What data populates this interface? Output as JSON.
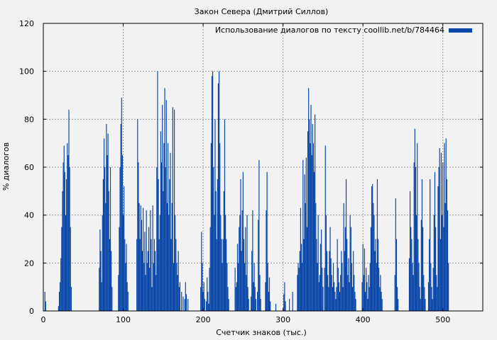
{
  "chart_data": {
    "type": "bar",
    "title": "Закон Севера (Дмитрий Силлов)",
    "xlabel": "Счетчик знаков (тыс.)",
    "ylabel": "% диалогов",
    "xlim": [
      0,
      550
    ],
    "ylim": [
      0,
      120
    ],
    "xticks": [
      "0",
      "100",
      "200",
      "300",
      "400",
      "500"
    ],
    "yticks": [
      "0",
      "20",
      "40",
      "60",
      "80",
      "100",
      "120"
    ],
    "grid": true,
    "legend_position": "top-right",
    "series": [
      {
        "name": "Использование диалогов по тексту coollib.net/b/784464",
        "color": "#0a47a9",
        "points": [
          [
            2,
            8
          ],
          [
            3,
            4
          ],
          [
            19,
            2
          ],
          [
            20,
            8
          ],
          [
            21,
            12
          ],
          [
            22,
            22
          ],
          [
            23,
            35
          ],
          [
            24,
            50
          ],
          [
            25,
            62
          ],
          [
            26,
            69
          ],
          [
            27,
            58
          ],
          [
            28,
            40
          ],
          [
            29,
            55
          ],
          [
            30,
            70
          ],
          [
            31,
            65
          ],
          [
            32,
            84
          ],
          [
            33,
            60
          ],
          [
            34,
            35
          ],
          [
            35,
            10
          ],
          [
            70,
            18
          ],
          [
            71,
            34
          ],
          [
            72,
            25
          ],
          [
            73,
            12
          ],
          [
            74,
            40
          ],
          [
            75,
            55
          ],
          [
            76,
            72
          ],
          [
            77,
            60
          ],
          [
            78,
            45
          ],
          [
            79,
            78
          ],
          [
            80,
            65
          ],
          [
            81,
            74
          ],
          [
            82,
            50
          ],
          [
            83,
            30
          ],
          [
            84,
            60
          ],
          [
            85,
            25
          ],
          [
            86,
            10
          ],
          [
            94,
            15
          ],
          [
            95,
            35
          ],
          [
            96,
            60
          ],
          [
            97,
            78
          ],
          [
            98,
            89
          ],
          [
            99,
            65
          ],
          [
            100,
            40
          ],
          [
            101,
            52
          ],
          [
            102,
            30
          ],
          [
            103,
            20
          ],
          [
            104,
            28
          ],
          [
            105,
            12
          ],
          [
            106,
            8
          ],
          [
            117,
            30
          ],
          [
            118,
            80
          ],
          [
            119,
            62
          ],
          [
            120,
            45
          ],
          [
            121,
            30
          ],
          [
            122,
            44
          ],
          [
            123,
            38
          ],
          [
            124,
            25
          ],
          [
            125,
            43
          ],
          [
            126,
            20
          ],
          [
            127,
            33
          ],
          [
            128,
            15
          ],
          [
            129,
            42
          ],
          [
            130,
            20
          ],
          [
            131,
            25
          ],
          [
            132,
            35
          ],
          [
            133,
            18
          ],
          [
            134,
            42
          ],
          [
            135,
            30
          ],
          [
            136,
            10
          ],
          [
            137,
            44
          ],
          [
            138,
            20
          ],
          [
            139,
            30
          ],
          [
            140,
            25
          ],
          [
            141,
            15
          ],
          [
            142,
            60
          ],
          [
            143,
            100
          ],
          [
            144,
            55
          ],
          [
            145,
            30
          ],
          [
            146,
            40
          ],
          [
            147,
            75
          ],
          [
            148,
            62
          ],
          [
            149,
            86
          ],
          [
            150,
            50
          ],
          [
            151,
            70
          ],
          [
            152,
            93
          ],
          [
            153,
            60
          ],
          [
            154,
            88
          ],
          [
            155,
            45
          ],
          [
            156,
            70
          ],
          [
            157,
            40
          ],
          [
            158,
            55
          ],
          [
            159,
            66
          ],
          [
            160,
            30
          ],
          [
            161,
            45
          ],
          [
            162,
            85
          ],
          [
            163,
            20
          ],
          [
            164,
            84
          ],
          [
            165,
            40
          ],
          [
            166,
            30
          ],
          [
            167,
            20
          ],
          [
            168,
            15
          ],
          [
            169,
            25
          ],
          [
            170,
            10
          ],
          [
            171,
            12
          ],
          [
            173,
            8
          ],
          [
            175,
            6
          ],
          [
            177,
            5
          ],
          [
            178,
            12
          ],
          [
            179,
            7
          ],
          [
            181,
            5
          ],
          [
            197,
            10
          ],
          [
            198,
            33
          ],
          [
            199,
            20
          ],
          [
            200,
            8
          ],
          [
            201,
            12
          ],
          [
            202,
            5
          ],
          [
            204,
            4
          ],
          [
            205,
            14
          ],
          [
            206,
            8
          ],
          [
            207,
            3
          ],
          [
            208,
            18
          ],
          [
            209,
            35
          ],
          [
            210,
            70
          ],
          [
            211,
            98
          ],
          [
            212,
            100
          ],
          [
            213,
            60
          ],
          [
            214,
            40
          ],
          [
            215,
            80
          ],
          [
            216,
            50
          ],
          [
            217,
            30
          ],
          [
            218,
            55
          ],
          [
            219,
            95
          ],
          [
            220,
            100
          ],
          [
            221,
            70
          ],
          [
            222,
            40
          ],
          [
            223,
            30
          ],
          [
            224,
            20
          ],
          [
            225,
            30
          ],
          [
            226,
            50
          ],
          [
            227,
            80
          ],
          [
            228,
            40
          ],
          [
            229,
            30
          ],
          [
            230,
            20
          ],
          [
            231,
            10
          ],
          [
            232,
            5
          ],
          [
            240,
            18
          ],
          [
            241,
            10
          ],
          [
            242,
            12
          ],
          [
            243,
            28
          ],
          [
            244,
            20
          ],
          [
            245,
            35
          ],
          [
            246,
            40
          ],
          [
            247,
            55
          ],
          [
            248,
            25
          ],
          [
            249,
            42
          ],
          [
            250,
            58
          ],
          [
            251,
            30
          ],
          [
            252,
            20
          ],
          [
            253,
            35
          ],
          [
            254,
            15
          ],
          [
            255,
            40
          ],
          [
            256,
            10
          ],
          [
            257,
            5
          ],
          [
            260,
            6
          ],
          [
            261,
            25
          ],
          [
            262,
            42
          ],
          [
            263,
            12
          ],
          [
            264,
            20
          ],
          [
            265,
            10
          ],
          [
            266,
            5
          ],
          [
            268,
            8
          ],
          [
            269,
            38
          ],
          [
            270,
            63
          ],
          [
            271,
            15
          ],
          [
            272,
            5
          ],
          [
            278,
            12
          ],
          [
            279,
            42
          ],
          [
            280,
            58
          ],
          [
            281,
            20
          ],
          [
            282,
            8
          ],
          [
            283,
            14
          ],
          [
            284,
            4
          ],
          [
            291,
            3
          ],
          [
            301,
            7
          ],
          [
            302,
            12
          ],
          [
            303,
            4
          ],
          [
            308,
            5
          ],
          [
            312,
            8
          ],
          [
            318,
            15
          ],
          [
            319,
            20
          ],
          [
            320,
            18
          ],
          [
            321,
            25
          ],
          [
            322,
            43
          ],
          [
            323,
            28
          ],
          [
            324,
            20
          ],
          [
            325,
            63
          ],
          [
            326,
            30
          ],
          [
            327,
            57
          ],
          [
            328,
            45
          ],
          [
            329,
            64
          ],
          [
            330,
            35
          ],
          [
            331,
            75
          ],
          [
            332,
            93
          ],
          [
            333,
            80
          ],
          [
            334,
            70
          ],
          [
            335,
            86
          ],
          [
            336,
            65
          ],
          [
            337,
            78
          ],
          [
            338,
            70
          ],
          [
            339,
            58
          ],
          [
            340,
            82
          ],
          [
            341,
            45
          ],
          [
            342,
            30
          ],
          [
            343,
            20
          ],
          [
            344,
            40
          ],
          [
            345,
            12
          ],
          [
            346,
            15
          ],
          [
            347,
            28
          ],
          [
            348,
            34
          ],
          [
            349,
            18
          ],
          [
            350,
            10
          ],
          [
            352,
            18
          ],
          [
            353,
            69
          ],
          [
            354,
            40
          ],
          [
            355,
            25
          ],
          [
            356,
            15
          ],
          [
            357,
            10
          ],
          [
            358,
            25
          ],
          [
            359,
            35
          ],
          [
            360,
            22
          ],
          [
            361,
            15
          ],
          [
            362,
            10
          ],
          [
            363,
            20
          ],
          [
            364,
            12
          ],
          [
            365,
            8
          ],
          [
            366,
            5
          ],
          [
            367,
            10
          ],
          [
            368,
            30
          ],
          [
            369,
            18
          ],
          [
            370,
            12
          ],
          [
            371,
            8
          ],
          [
            372,
            15
          ],
          [
            373,
            25
          ],
          [
            374,
            20
          ],
          [
            375,
            10
          ],
          [
            376,
            45
          ],
          [
            377,
            25
          ],
          [
            378,
            35
          ],
          [
            379,
            55
          ],
          [
            380,
            30
          ],
          [
            381,
            15
          ],
          [
            382,
            22
          ],
          [
            383,
            12
          ],
          [
            384,
            40
          ],
          [
            385,
            35
          ],
          [
            386,
            20
          ],
          [
            387,
            10
          ],
          [
            388,
            25
          ],
          [
            389,
            15
          ],
          [
            390,
            8
          ],
          [
            391,
            5
          ],
          [
            399,
            12
          ],
          [
            400,
            28
          ],
          [
            401,
            15
          ],
          [
            402,
            26
          ],
          [
            403,
            8
          ],
          [
            404,
            18
          ],
          [
            405,
            12
          ],
          [
            406,
            5
          ],
          [
            407,
            15
          ],
          [
            408,
            10
          ],
          [
            409,
            20
          ],
          [
            410,
            35
          ],
          [
            411,
            52
          ],
          [
            412,
            53
          ],
          [
            413,
            45
          ],
          [
            414,
            40
          ],
          [
            415,
            25
          ],
          [
            416,
            30
          ],
          [
            417,
            20
          ],
          [
            418,
            55
          ],
          [
            419,
            30
          ],
          [
            420,
            18
          ],
          [
            421,
            10
          ],
          [
            422,
            15
          ],
          [
            423,
            8
          ],
          [
            424,
            5
          ],
          [
            440,
            15
          ],
          [
            441,
            47
          ],
          [
            442,
            30
          ],
          [
            443,
            10
          ],
          [
            444,
            5
          ],
          [
            458,
            22
          ],
          [
            459,
            50
          ],
          [
            460,
            35
          ],
          [
            461,
            30
          ],
          [
            462,
            20
          ],
          [
            463,
            15
          ],
          [
            464,
            62
          ],
          [
            465,
            76
          ],
          [
            466,
            60
          ],
          [
            467,
            40
          ],
          [
            468,
            70
          ],
          [
            469,
            30
          ],
          [
            470,
            20
          ],
          [
            471,
            10
          ],
          [
            472,
            5
          ],
          [
            473,
            38
          ],
          [
            474,
            55
          ],
          [
            475,
            35
          ],
          [
            476,
            15
          ],
          [
            477,
            10
          ],
          [
            478,
            5
          ],
          [
            482,
            12
          ],
          [
            483,
            30
          ],
          [
            484,
            55
          ],
          [
            485,
            20
          ],
          [
            486,
            10
          ],
          [
            487,
            5
          ],
          [
            488,
            18
          ],
          [
            489,
            40
          ],
          [
            490,
            58
          ],
          [
            491,
            35
          ],
          [
            492,
            15
          ],
          [
            493,
            10
          ],
          [
            494,
            52
          ],
          [
            495,
            60
          ],
          [
            496,
            68
          ],
          [
            497,
            30
          ],
          [
            498,
            66
          ],
          [
            499,
            40
          ],
          [
            500,
            62
          ],
          [
            501,
            35
          ],
          [
            502,
            70
          ],
          [
            503,
            45
          ],
          [
            504,
            72
          ],
          [
            505,
            55
          ],
          [
            506,
            42
          ],
          [
            507,
            20
          ]
        ]
      }
    ]
  }
}
